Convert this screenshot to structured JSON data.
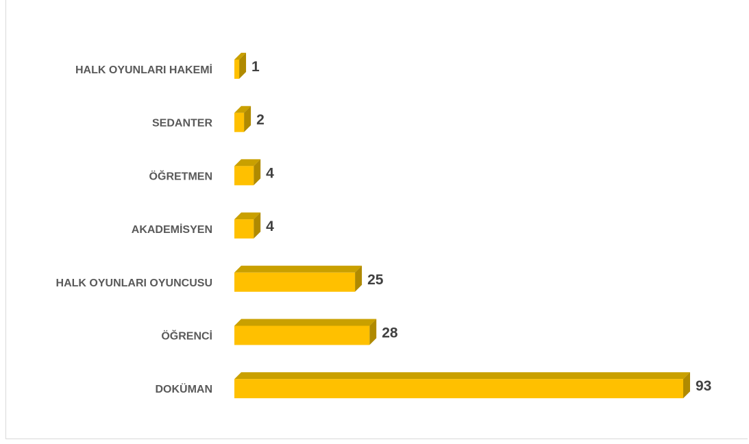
{
  "chart_data": {
    "type": "bar",
    "orientation": "horizontal",
    "style": "3d",
    "categories": [
      "HALK OYUNLARI HAKEMİ",
      "SEDANTER",
      "ÖĞRETMEN",
      "AKADEMİSYEN",
      "HALK OYUNLARI OYUNCUSU",
      "ÖĞRENCİ",
      "DOKÜMAN"
    ],
    "values": [
      1,
      2,
      4,
      4,
      25,
      28,
      93
    ],
    "title": "",
    "xlabel": "",
    "ylabel": "",
    "grid": false,
    "legend": "none",
    "colors": {
      "bar_front": "#FFC000",
      "bar_top": "#C9A000",
      "bar_side": "#B08A00",
      "category_text": "#595959",
      "value_text": "#404040"
    }
  }
}
